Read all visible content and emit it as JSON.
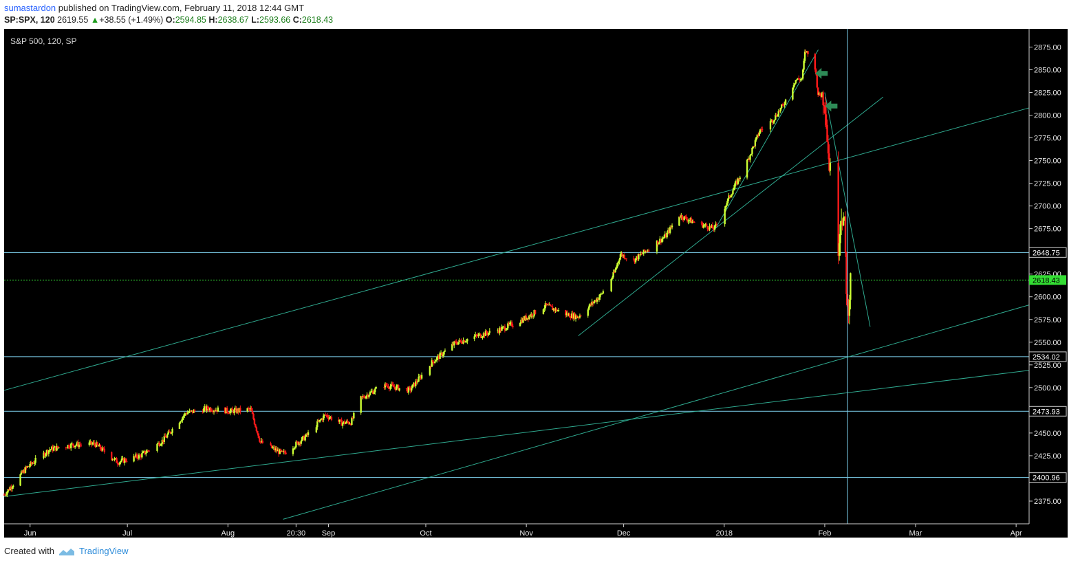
{
  "header": {
    "author": "sumastardon",
    "published_text": "published on TradingView.com, February 11, 2018 12:44 GMT",
    "symbol": "SP:SPX, 120",
    "last": "2619.55",
    "change": "+38.55 (+1.49%)",
    "open_label": "O:",
    "open": "2594.85",
    "high_label": "H:",
    "high": "2638.67",
    "low_label": "L:",
    "low": "2593.66",
    "close_label": "C:",
    "close": "2618.43"
  },
  "footer": {
    "created_with": "Created with",
    "brand": "TradingView"
  },
  "colors": {
    "background": "#000000",
    "up_candle": "#ccff33",
    "down_candle": "#ff1a1a",
    "trendline": "#2fa98f",
    "hline": "#7fd3f0",
    "last_price": "#33dd33",
    "arrow": "#2e8b57"
  },
  "chart_data": {
    "type": "candlestick",
    "title": "S&P 500, 120, SP",
    "ylim": [
      2350,
      2895
    ],
    "y_ticks": [
      2375,
      2400,
      2425,
      2450,
      2475,
      2500,
      2525,
      2550,
      2575,
      2600,
      2625,
      2650,
      2675,
      2700,
      2725,
      2750,
      2775,
      2800,
      2825,
      2850,
      2875
    ],
    "y_tick_labels": [
      "2375.00",
      "2400.00",
      "2425.00",
      "2450.00",
      "2475.00",
      "2500.00",
      "2525.00",
      "2550.00",
      "2575.00",
      "2600.00",
      "2625.00",
      "2650.00",
      "2675.00",
      "2700.00",
      "2725.00",
      "2750.00",
      "2775.00",
      "2800.00",
      "2825.00",
      "2850.00",
      "2875.00"
    ],
    "x_labels": [
      "Jun",
      "Jul",
      "Aug",
      "20:30",
      "Sep",
      "Oct",
      "Nov",
      "Dec",
      "2018",
      "Feb",
      "Mar",
      "Apr"
    ],
    "x_range": [
      "2017-05-24",
      "2018-04-05"
    ],
    "horizontal_levels": [
      {
        "value": 2648.75,
        "label": "2648.75"
      },
      {
        "value": 2534.02,
        "label": "2534.02"
      },
      {
        "value": 2473.93,
        "label": "2473.93"
      },
      {
        "value": 2400.96,
        "label": "2400.96"
      }
    ],
    "last_price": {
      "value": 2618.43,
      "label": "2618.43"
    },
    "cursor_date": "2018-02-08",
    "price_path": [
      [
        "2017-05-24",
        2382
      ],
      [
        "2017-05-31",
        2412
      ],
      [
        "2017-06-07",
        2432
      ],
      [
        "2017-06-14",
        2437
      ],
      [
        "2017-06-21",
        2438
      ],
      [
        "2017-06-28",
        2418
      ],
      [
        "2017-07-05",
        2425
      ],
      [
        "2017-07-12",
        2442
      ],
      [
        "2017-07-19",
        2472
      ],
      [
        "2017-07-26",
        2477
      ],
      [
        "2017-08-02",
        2474
      ],
      [
        "2017-08-08",
        2476
      ],
      [
        "2017-08-11",
        2440
      ],
      [
        "2017-08-18",
        2427
      ],
      [
        "2017-08-25",
        2446
      ],
      [
        "2017-08-31",
        2470
      ],
      [
        "2017-09-05",
        2461
      ],
      [
        "2017-09-08",
        2462
      ],
      [
        "2017-09-11",
        2488
      ],
      [
        "2017-09-18",
        2503
      ],
      [
        "2017-09-26",
        2497
      ],
      [
        "2017-10-03",
        2528
      ],
      [
        "2017-10-10",
        2549
      ],
      [
        "2017-10-17",
        2557
      ],
      [
        "2017-10-24",
        2564
      ],
      [
        "2017-10-31",
        2575
      ],
      [
        "2017-11-07",
        2590
      ],
      [
        "2017-11-14",
        2580
      ],
      [
        "2017-11-17",
        2578
      ],
      [
        "2017-11-24",
        2602
      ],
      [
        "2017-11-28",
        2625
      ],
      [
        "2017-11-30",
        2647
      ],
      [
        "2017-12-04",
        2640
      ],
      [
        "2017-12-08",
        2651
      ],
      [
        "2017-12-14",
        2667
      ],
      [
        "2017-12-18",
        2690
      ],
      [
        "2017-12-22",
        2683
      ],
      [
        "2017-12-29",
        2675
      ],
      [
        "2018-01-03",
        2713
      ],
      [
        "2018-01-08",
        2748
      ],
      [
        "2018-01-12",
        2783
      ],
      [
        "2018-01-16",
        2795
      ],
      [
        "2018-01-19",
        2810
      ],
      [
        "2018-01-23",
        2839
      ],
      [
        "2018-01-25",
        2840
      ],
      [
        "2018-01-26",
        2872
      ],
      [
        "2018-01-29",
        2853
      ],
      [
        "2018-01-30",
        2822
      ],
      [
        "2018-02-01",
        2821
      ],
      [
        "2018-02-02",
        2762
      ],
      [
        "2018-02-05",
        2649
      ],
      [
        "2018-02-06",
        2695
      ],
      [
        "2018-02-07",
        2681
      ],
      [
        "2018-02-08",
        2581
      ],
      [
        "2018-02-09",
        2619
      ]
    ],
    "trendlines": [
      {
        "from": [
          "2017-05-24",
          2497
        ],
        "to": [
          "2018-04-05",
          2808
        ]
      },
      {
        "from": [
          "2017-05-24",
          2380
        ],
        "to": [
          "2018-04-05",
          2519
        ]
      },
      {
        "from": [
          "2017-08-18",
          2355
        ],
        "to": [
          "2018-04-05",
          2591
        ]
      },
      {
        "from": [
          "2017-11-17",
          2557
        ],
        "to": [
          "2018-02-19",
          2820
        ]
      },
      {
        "from": [
          "2017-12-29",
          2673
        ],
        "to": [
          "2018-01-30",
          2872
        ]
      },
      {
        "from": [
          "2018-02-01",
          2825
        ],
        "to": [
          "2018-02-15",
          2567
        ]
      }
    ],
    "arrows": [
      {
        "date": "2018-01-31",
        "value": 2846
      },
      {
        "date": "2018-02-03",
        "value": 2810
      }
    ]
  }
}
